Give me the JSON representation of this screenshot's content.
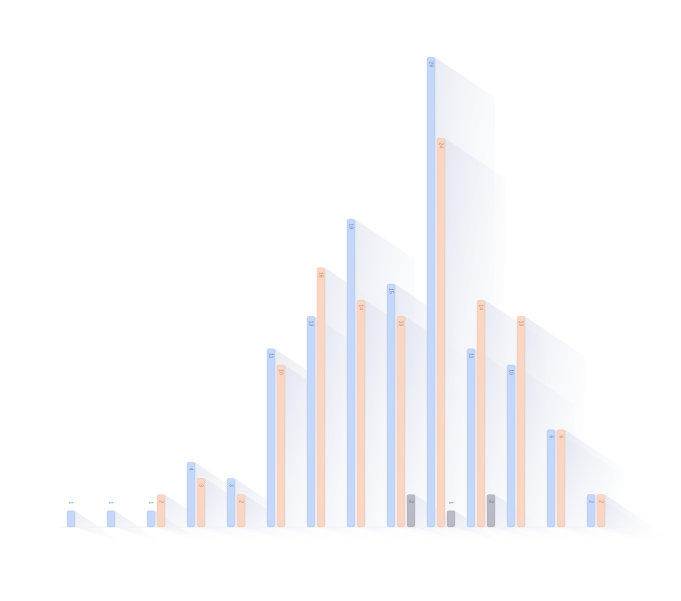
{
  "chart_data": {
    "type": "bar",
    "categories": [
      null,
      null,
      null,
      null,
      null,
      null,
      null,
      null,
      null,
      null,
      null,
      null,
      null,
      null
    ],
    "series": [
      {
        "color": "#c5d8fb",
        "values": [
          1,
          1,
          1,
          4,
          3,
          11,
          13,
          19,
          15,
          29,
          11,
          10,
          6,
          2
        ]
      },
      {
        "color": "#fdd5c3",
        "values": [
          null,
          null,
          2,
          3,
          2,
          10,
          16,
          14,
          13,
          24,
          14,
          13,
          6,
          2
        ]
      },
      {
        "color": "#b8b9c2",
        "values": [
          null,
          null,
          null,
          null,
          null,
          null,
          null,
          null,
          2,
          1,
          2,
          null,
          null,
          null
        ]
      }
    ],
    "ylim": [
      0,
      30
    ]
  }
}
